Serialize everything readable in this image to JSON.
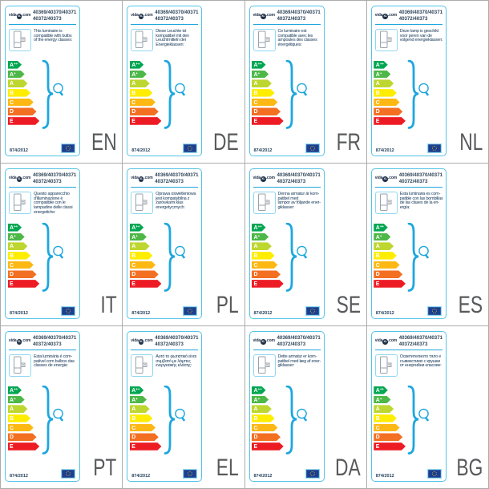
{
  "shared": {
    "brand": {
      "prefix": "vida",
      "xl": "XL",
      "suffix": ".com"
    },
    "model_numbers": [
      "40369/40370/40371",
      "40372/40373"
    ],
    "regulation": "874/2012",
    "energy_classes": [
      {
        "label": "A",
        "sup": "++",
        "color": "#00a651"
      },
      {
        "label": "A",
        "sup": "+",
        "color": "#4db848"
      },
      {
        "label": "A",
        "sup": "",
        "color": "#bed630"
      },
      {
        "label": "B",
        "sup": "",
        "color": "#ffed00"
      },
      {
        "label": "C",
        "sup": "",
        "color": "#fdb813"
      },
      {
        "label": "D",
        "sup": "",
        "color": "#f36f21"
      },
      {
        "label": "E",
        "sup": "",
        "color": "#ed1c24"
      }
    ],
    "accent_blue": "#1ea7de",
    "card_border_blue": "#54c4e6",
    "text_navy": "#16395a",
    "lang_code_gray": "#58595b"
  },
  "cards": [
    {
      "lang_code": "EN",
      "description": [
        "This luminaire is",
        "compatible with bulbs",
        "of the energy classes:"
      ]
    },
    {
      "lang_code": "DE",
      "description": [
        "Diese Leuchte ist",
        "kompatibel mit den",
        "Leuchtmitteln der",
        "Energieklassen:"
      ]
    },
    {
      "lang_code": "FR",
      "description": [
        "Ce luminaire est",
        "compatible avec les",
        "ampoules des classes",
        "énergétiques:"
      ]
    },
    {
      "lang_code": "NL",
      "description": [
        "Deze lamp is geschikt",
        "voor peren van de",
        "volgend energieklassen:"
      ]
    },
    {
      "lang_code": "IT",
      "description": [
        "Questo apparecchio",
        "d'illuminazione è",
        "compatibile con le",
        "lampadine delle classi",
        "energetiche:"
      ]
    },
    {
      "lang_code": "PL",
      "description": [
        "Oprawa oświetleniowa",
        "jest kompatybilna z",
        "żarówkami klas",
        "energetycznych:"
      ]
    },
    {
      "lang_code": "SE",
      "description": [
        "Denna armatur är kom-",
        "patibel med",
        "lampor av följande ener-",
        "giklasser:"
      ]
    },
    {
      "lang_code": "ES",
      "description": [
        "Esta luminaria es com-",
        "patible con las bombillas",
        "de las clases de la en-",
        "ergía:"
      ]
    },
    {
      "lang_code": "PT",
      "description": [
        "Esta luminária é com-",
        "patível com bulbos das",
        "classes de energia:"
      ]
    },
    {
      "lang_code": "EL",
      "description": [
        "Αυτό το φωτιστικό είναι",
        "συμβατό με λάμπες",
        "ενεργειακής κλάσης:"
      ]
    },
    {
      "lang_code": "DA",
      "description": [
        "Dette armatur er kom-",
        "patibel med læg af ener-",
        "giklasser:"
      ]
    },
    {
      "lang_code": "BG",
      "description": [
        "Осветителното тяло е",
        "съвместимо с крушки",
        "от енергийни класове:"
      ]
    }
  ]
}
